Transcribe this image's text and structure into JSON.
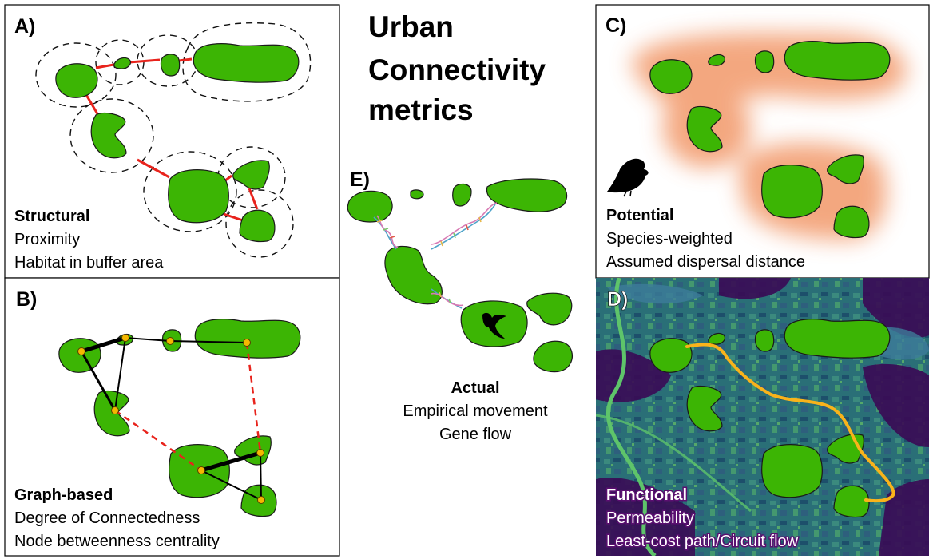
{
  "title": [
    "Urban",
    "Connectivity",
    "metrics"
  ],
  "panels": {
    "a": {
      "label": "A)",
      "heading": "Structural",
      "lines": [
        "Proximity",
        "Habitat in buffer area"
      ]
    },
    "b": {
      "label": "B)",
      "heading": "Graph-based",
      "lines": [
        "Degree of Connectedness",
        "Node betweenness centrality"
      ]
    },
    "c": {
      "label": "C)",
      "heading": "Potential",
      "lines": [
        "Species-weighted",
        "Assumed dispersal distance"
      ]
    },
    "d": {
      "label": "D)",
      "heading": "Functional",
      "lines": [
        "Permeability",
        "Least-cost path/Circuit flow"
      ]
    },
    "e": {
      "label": "E)",
      "heading": "Actual",
      "lines": [
        "Empirical movement",
        "Gene flow"
      ]
    }
  },
  "colors": {
    "habitat_patch": "#3cb504",
    "structural_link": "#e8231c",
    "graph_node": "#f5b800",
    "graph_potential_link": "#e8231c",
    "dispersal_halo": "#f08a55",
    "least_cost_path": "#f9b31b",
    "map_background": "#1f6b78"
  },
  "icons": {
    "potential": "bird-silhouette-icon",
    "actual": "flying-bird-icon",
    "links_e": "dna-helix-icon"
  }
}
